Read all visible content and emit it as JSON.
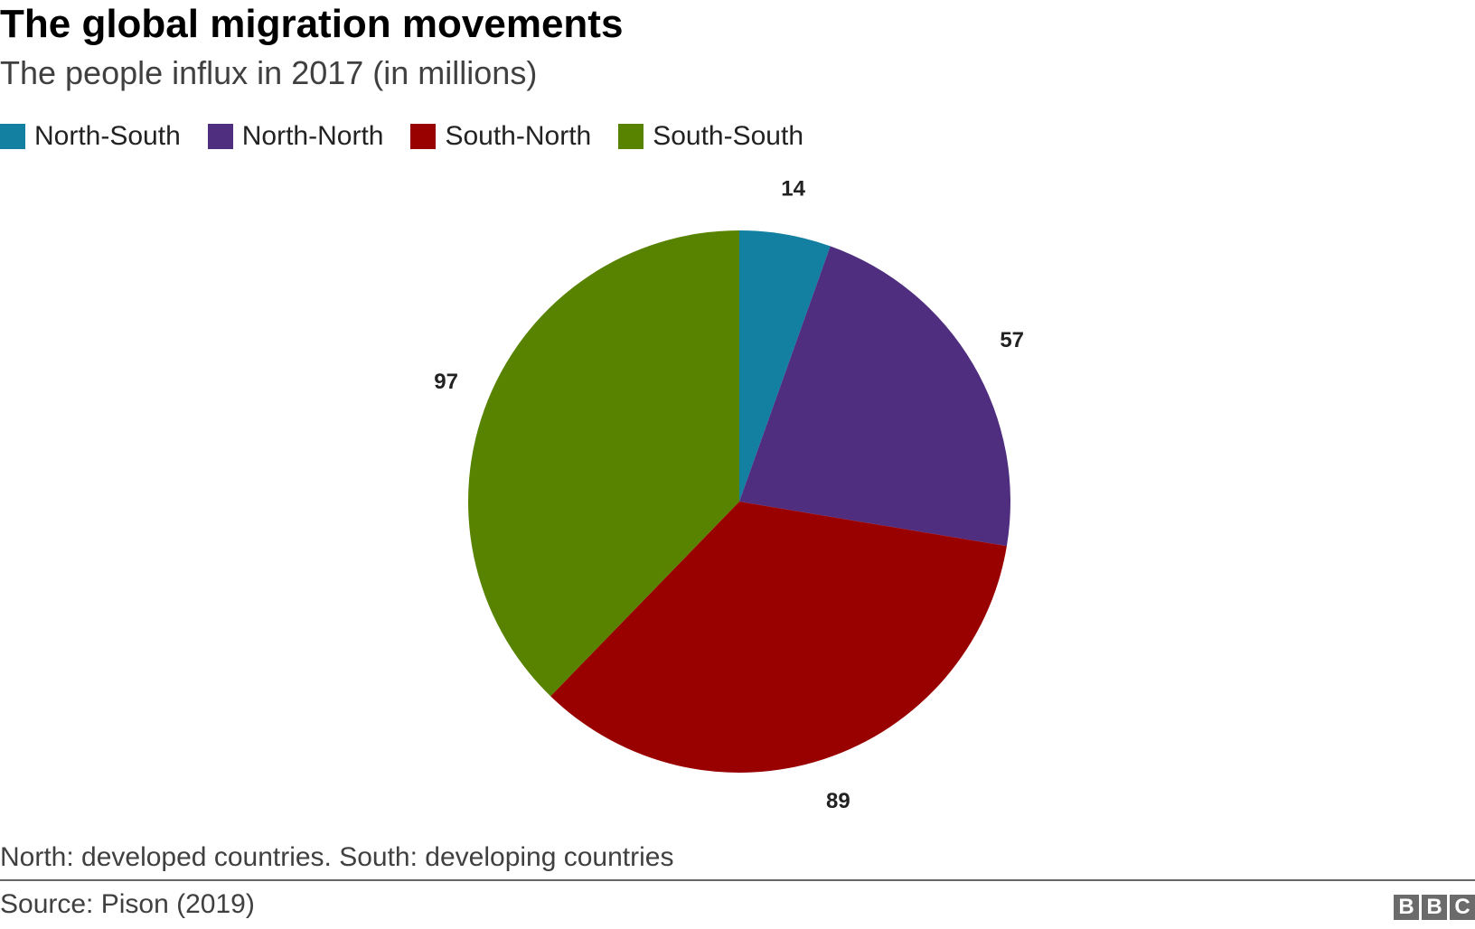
{
  "header": {
    "title": "The global migration movements",
    "subtitle": "The people influx in 2017 (in millions)"
  },
  "legend": [
    {
      "label": "North-South",
      "color": "#1380A1"
    },
    {
      "label": "North-North",
      "color": "#4F2D7F"
    },
    {
      "label": "South-North",
      "color": "#990000"
    },
    {
      "label": "South-South",
      "color": "#588300"
    }
  ],
  "chart_data": {
    "type": "pie",
    "title": "The global migration movements",
    "subtitle": "The people influx in 2017 (in millions)",
    "slices": [
      {
        "label": "North-South",
        "value": 14,
        "color": "#1380A1"
      },
      {
        "label": "North-North",
        "value": 57,
        "color": "#4F2D7F"
      },
      {
        "label": "South-North",
        "value": 89,
        "color": "#990000"
      },
      {
        "label": "South-South",
        "value": 97,
        "color": "#588300"
      }
    ],
    "start_angle_deg": 0,
    "direction": "clockwise",
    "legend_position": "top-left"
  },
  "footer": {
    "note": "North: developed countries. South: developing countries",
    "source": "Source: Pison (2019)",
    "logo_letters": [
      "B",
      "B",
      "C"
    ]
  }
}
